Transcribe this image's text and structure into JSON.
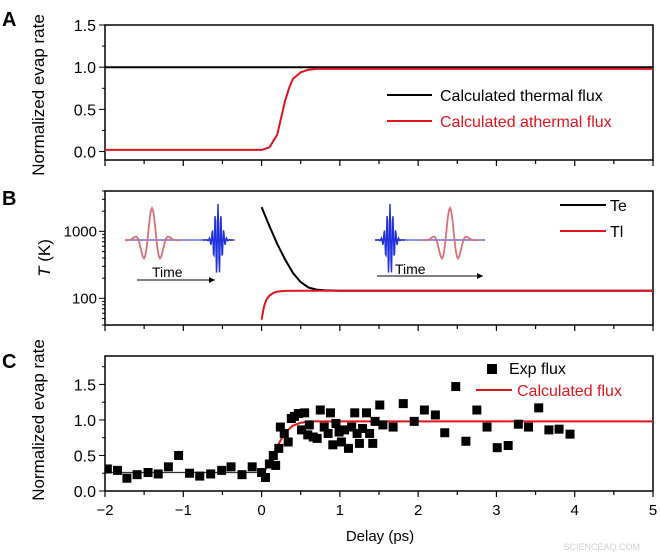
{
  "colors": {
    "thermal": "#000000",
    "athermal": "#e0141e",
    "inset_red": "#d9707a",
    "inset_blue": "#2030e0",
    "inset_axis": "#6a6ad0"
  },
  "watermark": "SCIENCEAQ.COM",
  "chart_data": [
    {
      "panel": "A",
      "type": "line",
      "ylabel": "Normalized evap rate",
      "xlim": [
        -2,
        5
      ],
      "ylim": [
        -0.1,
        1.5
      ],
      "yticks": [
        "0.0",
        "0.5",
        "1.0",
        "1.5"
      ],
      "legend_position": "right",
      "series": [
        {
          "name": "Calculated thermal flux",
          "color": "#000000",
          "x": [
            -2,
            0,
            5
          ],
          "y": [
            1.0,
            1.0,
            1.0
          ]
        },
        {
          "name": "Calculated athermal flux",
          "color": "#e0141e",
          "x": [
            -2,
            0,
            0.1,
            0.2,
            0.25,
            0.3,
            0.35,
            0.4,
            0.5,
            0.6,
            0.7,
            1,
            5
          ],
          "y": [
            0.02,
            0.02,
            0.05,
            0.2,
            0.4,
            0.6,
            0.75,
            0.86,
            0.94,
            0.97,
            0.98,
            0.98,
            0.98
          ]
        }
      ]
    },
    {
      "panel": "B",
      "type": "line",
      "ylabel_italic": "T",
      "ylabel_rest": " (K)",
      "yscale": "log",
      "xlim": [
        -2,
        5
      ],
      "ylim": [
        40,
        4000
      ],
      "yticks": [
        "100",
        "1000"
      ],
      "legend_position": "top-right",
      "inset_label": "Time",
      "series": [
        {
          "name": "Te",
          "color": "#000000",
          "x": [
            0,
            0.1,
            0.2,
            0.3,
            0.4,
            0.5,
            0.6,
            0.7,
            0.8,
            1,
            5
          ],
          "y": [
            2300,
            1200,
            650,
            380,
            240,
            175,
            145,
            135,
            132,
            130,
            130
          ]
        },
        {
          "name": "Tl",
          "color": "#e0141e",
          "x": [
            0,
            0.03,
            0.06,
            0.1,
            0.15,
            0.2,
            0.3,
            0.5,
            1,
            5
          ],
          "y": [
            48,
            75,
            95,
            110,
            120,
            126,
            129,
            130,
            130,
            130
          ]
        }
      ]
    },
    {
      "panel": "C",
      "type": "scatter",
      "ylabel": "Normalized evap rate",
      "xlabel": "Delay (ps)",
      "xlim": [
        -2,
        5
      ],
      "ylim": [
        0,
        1.9
      ],
      "xticks": [
        "−2",
        "−1",
        "0",
        "1",
        "2",
        "3",
        "4",
        "5"
      ],
      "yticks": [
        "0.0",
        "0.5",
        "1.0",
        "1.5"
      ],
      "legend_position": "top-right",
      "points": {
        "name": "Exp flux",
        "x": [
          -1.97,
          -1.84,
          -1.72,
          -1.59,
          -1.45,
          -1.32,
          -1.19,
          -1.06,
          -0.92,
          -0.79,
          -0.65,
          -0.51,
          -0.39,
          -0.25,
          -0.12,
          0,
          0.05,
          0.1,
          0.15,
          0.18,
          0.22,
          0.24,
          0.29,
          0.34,
          0.38,
          0.42,
          0.47,
          0.51,
          0.55,
          0.59,
          0.61,
          0.66,
          0.71,
          0.75,
          0.8,
          0.85,
          0.88,
          0.91,
          0.95,
          0.99,
          1.02,
          1.06,
          1.11,
          1.15,
          1.19,
          1.22,
          1.25,
          1.29,
          1.34,
          1.38,
          1.42,
          1.45,
          1.51,
          1.55,
          1.68,
          1.81,
          1.95,
          2.08,
          2.22,
          2.34,
          2.48,
          2.61,
          2.75,
          2.88,
          3.01,
          3.15,
          3.28,
          3.41,
          3.54,
          3.67,
          3.8,
          3.94
        ],
        "y": [
          0.31,
          0.29,
          0.18,
          0.23,
          0.26,
          0.24,
          0.34,
          0.5,
          0.25,
          0.21,
          0.24,
          0.29,
          0.34,
          0.23,
          0.34,
          0.26,
          0.19,
          0.38,
          0.5,
          0.36,
          0.6,
          0.9,
          0.81,
          0.69,
          1.02,
          1.05,
          1.09,
          0.86,
          1.1,
          0.79,
          0.93,
          0.76,
          0.74,
          1.14,
          0.9,
          0.81,
          1.1,
          0.65,
          0.95,
          0.83,
          0.69,
          0.86,
          0.6,
          0.9,
          1.1,
          0.81,
          0.67,
          0.88,
          1.1,
          0.81,
          0.67,
          0.98,
          1.21,
          0.93,
          0.9,
          1.23,
          0.98,
          1.14,
          1.07,
          0.82,
          1.47,
          0.7,
          1.14,
          0.9,
          0.61,
          0.64,
          0.94,
          0.9,
          1.17,
          0.86,
          0.87,
          0.8
        ]
      },
      "series": [
        {
          "name": "",
          "color": "#333333",
          "x": [
            -2,
            0
          ],
          "y": [
            0.26,
            0.26
          ]
        },
        {
          "name": "Calculated flux",
          "color": "#e0141e",
          "x": [
            0,
            0.05,
            0.1,
            0.2,
            0.3,
            0.4,
            0.5,
            0.6,
            0.8,
            1,
            5
          ],
          "y": [
            0.26,
            0.3,
            0.4,
            0.63,
            0.82,
            0.92,
            0.96,
            0.98,
            0.98,
            0.98,
            0.98
          ]
        }
      ]
    }
  ]
}
